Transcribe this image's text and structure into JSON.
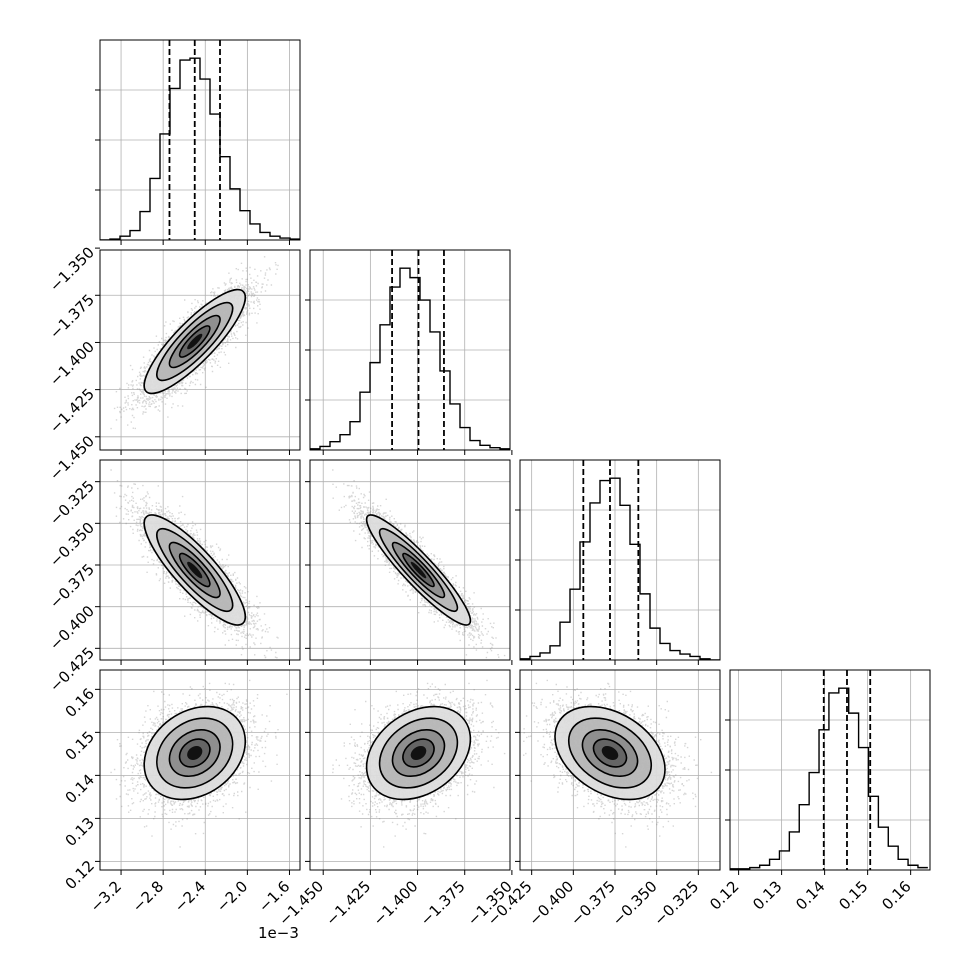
{
  "chart_data": {
    "type": "corner",
    "title": "",
    "grid": true,
    "parameters": [
      {
        "name": "",
        "offset_label": "1e−3",
        "range": [
          -3.4,
          -1.5
        ],
        "ticks": [
          -3.2,
          -2.8,
          -2.4,
          -2.0,
          -1.6
        ],
        "tick_labels": [
          "−3.2",
          "−2.8",
          "−2.4",
          "−2.0",
          "−1.6"
        ],
        "quantiles": [
          -2.74,
          -2.5,
          -2.26
        ],
        "hist_edges_start": -3.4,
        "hist_bin_width": 0.095,
        "hist_counts": [
          0,
          1,
          4,
          10,
          30,
          65,
          112,
          160,
          190,
          192,
          170,
          133,
          88,
          54,
          31,
          17,
          8,
          4,
          2,
          1
        ]
      },
      {
        "name": "",
        "offset_label": "",
        "range": [
          -1.457,
          -1.351
        ],
        "ticks": [
          -1.45,
          -1.425,
          -1.4,
          -1.375,
          -1.35
        ],
        "tick_labels": [
          "−1.450",
          "−1.425",
          "−1.400",
          "−1.375",
          "−1.350"
        ],
        "quantiles": [
          -1.4135,
          -1.3995,
          -1.386
        ],
        "hist_edges_start": -1.457,
        "hist_bin_width": 0.0053,
        "hist_counts": [
          1,
          3,
          7,
          13,
          24,
          49,
          74,
          106,
          138,
          154,
          146,
          127,
          100,
          67,
          39,
          19,
          8,
          4,
          2,
          1
        ]
      },
      {
        "name": "",
        "offset_label": "",
        "range": [
          -0.432,
          -0.312
        ],
        "ticks": [
          -0.425,
          -0.4,
          -0.375,
          -0.35,
          -0.325
        ],
        "tick_labels": [
          "−0.425",
          "−0.400",
          "−0.375",
          "−0.350",
          "−0.325"
        ],
        "quantiles": [
          -0.394,
          -0.378,
          -0.361
        ],
        "hist_edges_start": -0.432,
        "hist_bin_width": 0.006,
        "hist_counts": [
          1,
          3,
          6,
          12,
          32,
          60,
          100,
          133,
          152,
          154,
          131,
          98,
          56,
          27,
          14,
          8,
          5,
          3,
          1,
          0
        ]
      },
      {
        "name": "",
        "offset_label": "",
        "range": [
          0.118,
          0.1645
        ],
        "ticks": [
          0.12,
          0.13,
          0.14,
          0.15,
          0.16
        ],
        "tick_labels": [
          "0.12",
          "0.13",
          "0.14",
          "0.15",
          "0.16"
        ],
        "quantiles": [
          0.1398,
          0.1452,
          0.1506
        ],
        "hist_edges_start": 0.118,
        "hist_bin_width": 0.0023,
        "hist_counts": [
          1,
          1,
          2,
          4,
          9,
          16,
          32,
          55,
          82,
          118,
          149,
          153,
          132,
          103,
          62,
          36,
          20,
          9,
          4,
          2
        ]
      }
    ]
  }
}
